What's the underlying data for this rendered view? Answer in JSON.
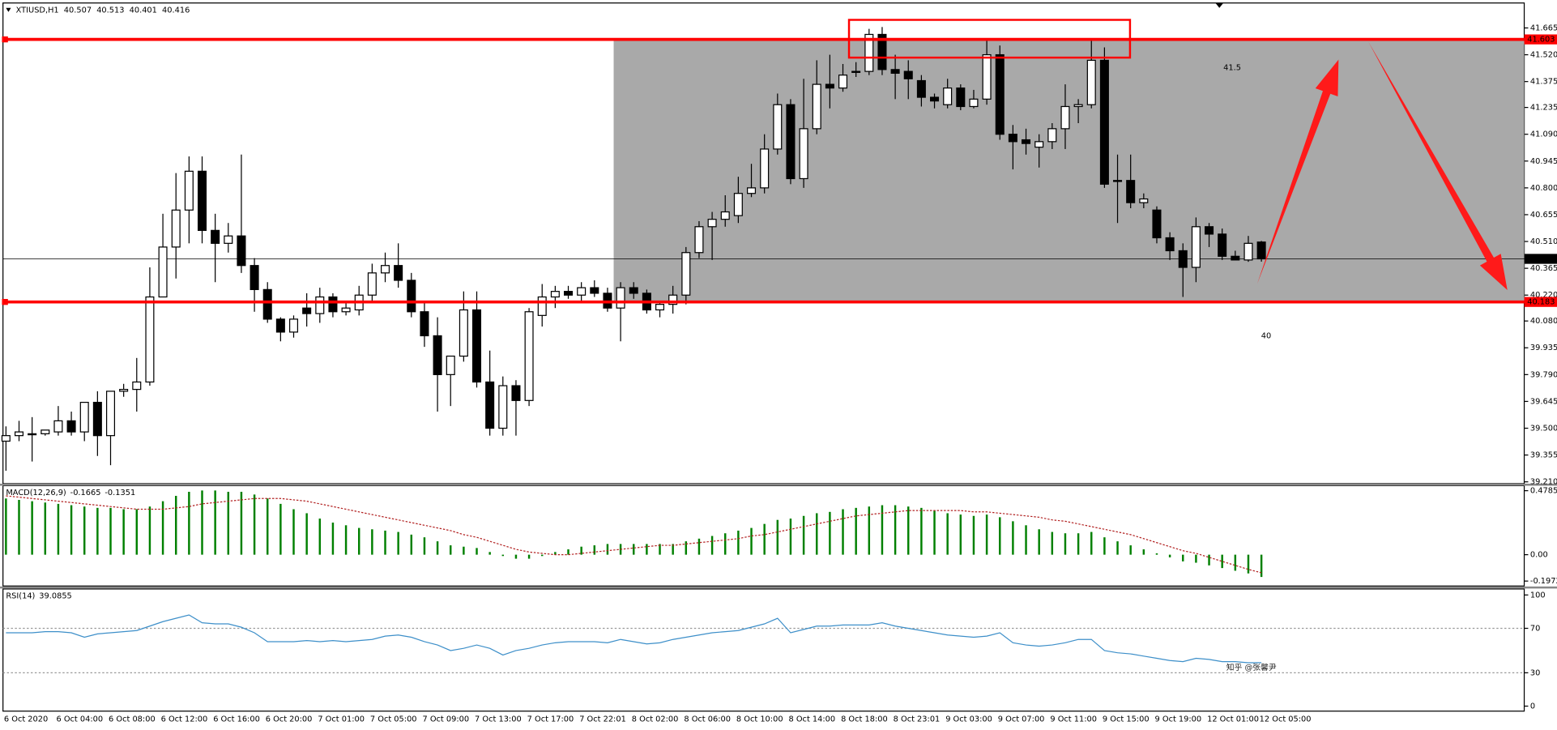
{
  "chart_data": [
    {
      "type": "candlestick",
      "title": "XTIUSD,H1",
      "categories": [
        "6 Oct 2020",
        null,
        null,
        null,
        "6 Oct 04:00",
        null,
        null,
        null,
        "6 Oct 08:00",
        null,
        null,
        null,
        "6 Oct 12:00",
        null,
        null,
        null,
        "6 Oct 16:00",
        null,
        null,
        null,
        "6 Oct 20:00",
        null,
        null,
        null,
        "7 Oct 01:00",
        null,
        null,
        null,
        "7 Oct 05:00",
        null,
        null,
        null,
        "7 Oct 09:00",
        null,
        null,
        null,
        "7 Oct 13:00",
        null,
        null,
        null,
        "7 Oct 17:00",
        null,
        null,
        null,
        "7 Oct 22:01",
        null,
        null,
        null,
        "8 Oct 02:00",
        null,
        null,
        null,
        "8 Oct 06:00",
        null,
        null,
        null,
        "8 Oct 10:00",
        null,
        null,
        null,
        "8 Oct 14:00",
        null,
        null,
        null,
        "8 Oct 18:00",
        null,
        null,
        null,
        "8 Oct 23:01",
        null,
        null,
        null,
        "9 Oct 03:00",
        null,
        null,
        null,
        "9 Oct 07:00",
        null,
        null,
        null,
        "9 Oct 11:00",
        null,
        null,
        null,
        "9 Oct 15:00",
        null,
        null,
        null,
        "9 Oct 19:00",
        null,
        null,
        null,
        "12 Oct 01:00",
        null,
        null,
        null,
        "12 Oct 05:00"
      ],
      "open": [
        39.43,
        39.46,
        39.47,
        39.47,
        39.48,
        39.54,
        39.48,
        39.64,
        39.46,
        39.7,
        39.71,
        39.75,
        40.21,
        40.48,
        40.68,
        40.89,
        40.57,
        40.5,
        40.54,
        40.38,
        40.25,
        40.09,
        40.02,
        40.15,
        40.12,
        40.21,
        40.13,
        40.14,
        40.22,
        40.34,
        40.38,
        40.3,
        40.13,
        40.0,
        39.79,
        39.89,
        40.14,
        39.75,
        39.5,
        39.73,
        39.65,
        40.11,
        40.21,
        40.24,
        40.22,
        40.26,
        40.23,
        40.15,
        40.26,
        40.23,
        40.14,
        40.17,
        40.22,
        40.45,
        40.59,
        40.63,
        40.65,
        40.77,
        40.8,
        41.01,
        41.25,
        40.85,
        41.12,
        41.36,
        41.34,
        41.43,
        41.43,
        41.63,
        41.44,
        41.43,
        41.38,
        41.29,
        41.25,
        41.34,
        41.24,
        41.28,
        41.52,
        41.09,
        41.06,
        41.02,
        41.05,
        41.12,
        41.24,
        41.25,
        41.49,
        40.84,
        40.84,
        40.72,
        40.68,
        40.53,
        40.46,
        40.37,
        40.59,
        40.55,
        40.43,
        40.41,
        40.507
      ],
      "high": [
        39.51,
        39.54,
        39.56,
        39.49,
        39.62,
        39.59,
        39.64,
        39.7,
        39.7,
        39.74,
        39.88,
        40.37,
        40.66,
        40.88,
        40.97,
        40.97,
        40.66,
        40.61,
        40.98,
        40.42,
        40.29,
        40.1,
        40.11,
        40.23,
        40.26,
        40.23,
        40.18,
        40.27,
        40.39,
        40.45,
        40.5,
        40.34,
        40.18,
        40.1,
        39.89,
        40.24,
        40.24,
        39.92,
        39.78,
        39.76,
        40.15,
        40.28,
        40.27,
        40.27,
        40.29,
        40.3,
        40.26,
        40.29,
        40.29,
        40.25,
        40.19,
        40.27,
        40.48,
        40.62,
        40.67,
        40.76,
        40.86,
        40.93,
        41.09,
        41.31,
        41.28,
        41.39,
        41.49,
        41.52,
        41.47,
        41.48,
        41.66,
        41.67,
        41.52,
        41.49,
        41.41,
        41.31,
        41.39,
        41.36,
        41.33,
        41.6,
        41.57,
        41.14,
        41.12,
        41.09,
        41.15,
        41.36,
        41.28,
        41.6,
        41.56,
        40.98,
        40.98,
        40.77,
        40.7,
        40.56,
        40.5,
        40.64,
        40.61,
        40.58,
        40.46,
        40.54,
        40.513
      ],
      "low": [
        39.27,
        39.43,
        39.32,
        39.46,
        39.46,
        39.46,
        39.43,
        39.35,
        39.3,
        39.67,
        39.59,
        39.73,
        40.21,
        40.31,
        40.5,
        40.5,
        40.29,
        40.45,
        40.34,
        40.13,
        40.07,
        39.97,
        39.99,
        40.05,
        40.07,
        40.1,
        40.11,
        40.11,
        40.18,
        40.29,
        40.26,
        40.1,
        39.94,
        39.59,
        39.62,
        39.86,
        39.72,
        39.46,
        39.46,
        39.46,
        39.62,
        40.05,
        40.15,
        40.2,
        40.19,
        40.21,
        40.13,
        39.97,
        40.2,
        40.12,
        40.1,
        40.12,
        40.17,
        40.42,
        40.41,
        40.59,
        40.61,
        40.75,
        40.77,
        40.98,
        40.82,
        40.8,
        41.09,
        41.23,
        41.32,
        41.4,
        41.41,
        41.41,
        41.28,
        41.28,
        41.24,
        41.23,
        41.23,
        41.22,
        41.23,
        41.25,
        41.06,
        40.9,
        40.98,
        40.91,
        41.01,
        41.01,
        41.15,
        41.23,
        40.8,
        40.61,
        40.69,
        40.69,
        40.5,
        40.41,
        40.21,
        40.29,
        40.48,
        40.41,
        40.41,
        40.4,
        40.401
      ],
      "close": [
        39.46,
        39.48,
        39.47,
        39.49,
        39.54,
        39.48,
        39.64,
        39.46,
        39.7,
        39.71,
        39.75,
        40.21,
        40.48,
        40.68,
        40.89,
        40.57,
        40.5,
        40.54,
        40.38,
        40.25,
        40.09,
        40.02,
        40.09,
        40.12,
        40.21,
        40.13,
        40.15,
        40.22,
        40.34,
        40.38,
        40.3,
        40.13,
        40.0,
        39.79,
        39.89,
        40.14,
        39.75,
        39.5,
        39.73,
        39.65,
        40.13,
        40.21,
        40.24,
        40.22,
        40.26,
        40.23,
        40.15,
        40.26,
        40.23,
        40.14,
        40.17,
        40.22,
        40.45,
        40.59,
        40.63,
        40.67,
        40.77,
        40.8,
        41.01,
        41.25,
        40.85,
        41.12,
        41.36,
        41.34,
        41.41,
        41.43,
        41.63,
        41.44,
        41.42,
        41.39,
        41.29,
        41.27,
        41.34,
        41.24,
        41.28,
        41.52,
        41.09,
        41.05,
        41.04,
        41.05,
        41.12,
        41.24,
        41.25,
        41.49,
        40.82,
        40.84,
        40.72,
        40.74,
        40.53,
        40.46,
        40.37,
        40.59,
        40.55,
        40.43,
        40.41,
        40.5,
        40.416
      ],
      "up_color": "#ffffff",
      "down_color": "#000000",
      "ylim": [
        39.2,
        41.8
      ],
      "yticks": [
        41.665,
        {
          "value": 41.52,
          "label": "41.520"
        },
        41.375,
        41.235,
        {
          "value": 41.09,
          "label": "41.090"
        },
        40.945,
        {
          "value": 40.8,
          "label": "40.800"
        },
        40.655,
        {
          "value": 40.51,
          "label": "40.510"
        },
        40.365,
        {
          "value": 40.22,
          "label": "40.220"
        },
        {
          "value": 40.08,
          "label": "40.080"
        },
        39.935,
        {
          "value": 39.79,
          "label": "39.790"
        },
        39.645,
        {
          "value": 39.5,
          "label": "39.500"
        },
        39.355,
        {
          "value": 39.21,
          "label": "39.210"
        }
      ],
      "levels": [
        {
          "value": 41.603,
          "color": "#ff0000"
        },
        {
          "value": 40.183,
          "color": "#ff0000"
        }
      ],
      "zone_color": "#a9a9a9",
      "annotations": [
        "41.5",
        "40"
      ],
      "watermark": "知乎 @张馨尹"
    },
    {
      "type": "macd",
      "title": "MACD(12,26,9)",
      "values": [
        0.42,
        0.41,
        0.4,
        0.39,
        0.38,
        0.37,
        0.36,
        0.35,
        0.35,
        0.34,
        0.34,
        0.36,
        0.4,
        0.44,
        0.47,
        0.48,
        0.48,
        0.47,
        0.47,
        0.45,
        0.42,
        0.38,
        0.34,
        0.31,
        0.27,
        0.24,
        0.22,
        0.2,
        0.19,
        0.18,
        0.17,
        0.15,
        0.13,
        0.1,
        0.07,
        0.06,
        0.05,
        0.02,
        -0.01,
        -0.03,
        -0.03,
        -0.01,
        0.02,
        0.04,
        0.06,
        0.07,
        0.08,
        0.08,
        0.08,
        0.08,
        0.08,
        0.08,
        0.1,
        0.12,
        0.14,
        0.16,
        0.18,
        0.2,
        0.23,
        0.26,
        0.27,
        0.29,
        0.31,
        0.32,
        0.34,
        0.35,
        0.36,
        0.37,
        0.37,
        0.36,
        0.35,
        0.33,
        0.31,
        0.3,
        0.29,
        0.3,
        0.28,
        0.25,
        0.22,
        0.19,
        0.17,
        0.16,
        0.16,
        0.17,
        0.13,
        0.1,
        0.07,
        0.04,
        0.01,
        -0.02,
        -0.05,
        -0.06,
        -0.08,
        -0.1,
        -0.12,
        -0.14,
        -0.1665
      ],
      "color": "#008000",
      "signal": [
        0.44,
        0.43,
        0.42,
        0.41,
        0.4,
        0.39,
        0.38,
        0.37,
        0.36,
        0.35,
        0.34,
        0.34,
        0.34,
        0.35,
        0.36,
        0.38,
        0.39,
        0.4,
        0.41,
        0.42,
        0.42,
        0.42,
        0.41,
        0.4,
        0.38,
        0.36,
        0.34,
        0.32,
        0.3,
        0.28,
        0.26,
        0.24,
        0.22,
        0.2,
        0.18,
        0.15,
        0.13,
        0.1,
        0.07,
        0.04,
        0.02,
        0.01,
        0.0,
        0.0,
        0.01,
        0.02,
        0.03,
        0.04,
        0.05,
        0.06,
        0.07,
        0.07,
        0.08,
        0.09,
        0.1,
        0.11,
        0.12,
        0.14,
        0.15,
        0.17,
        0.19,
        0.21,
        0.23,
        0.25,
        0.27,
        0.29,
        0.3,
        0.31,
        0.32,
        0.33,
        0.33,
        0.33,
        0.33,
        0.33,
        0.32,
        0.32,
        0.31,
        0.3,
        0.29,
        0.28,
        0.26,
        0.25,
        0.23,
        0.21,
        0.19,
        0.17,
        0.15,
        0.12,
        0.09,
        0.06,
        0.03,
        0.01,
        -0.02,
        -0.05,
        -0.08,
        -0.11,
        -0.1351
      ],
      "signal_color": "#b22222",
      "ylim": [
        -0.234,
        0.516
      ],
      "yticks": [
        0.4785,
        {
          "value": 0,
          "label": "0.00"
        },
        -0.1972
      ]
    },
    {
      "type": "line",
      "title": "RSI(14)",
      "values": [
        66,
        66,
        66,
        67,
        67,
        66,
        62,
        65,
        66,
        67,
        68,
        72,
        76,
        79,
        82,
        75,
        74,
        74,
        71,
        66,
        58,
        58,
        58,
        59,
        58,
        59,
        58,
        59,
        60,
        63,
        64,
        62,
        58,
        55,
        50,
        52,
        55,
        52,
        46,
        50,
        52,
        55,
        57,
        58,
        58,
        58,
        57,
        60,
        58,
        56,
        57,
        60,
        62,
        64,
        66,
        67,
        68,
        71,
        74,
        79,
        66,
        69,
        72,
        72,
        73,
        73,
        73,
        75,
        72,
        70,
        68,
        66,
        64,
        63,
        62,
        63,
        66,
        57,
        55,
        54,
        55,
        57,
        60,
        60,
        50,
        48,
        47,
        45,
        43,
        41,
        40,
        43,
        42,
        40,
        40,
        39,
        39.0855
      ],
      "color": "#3d8fc9",
      "ylim": [
        -4.5,
        105.4
      ],
      "yticks": [
        100,
        70,
        30,
        0
      ]
    }
  ]
}
